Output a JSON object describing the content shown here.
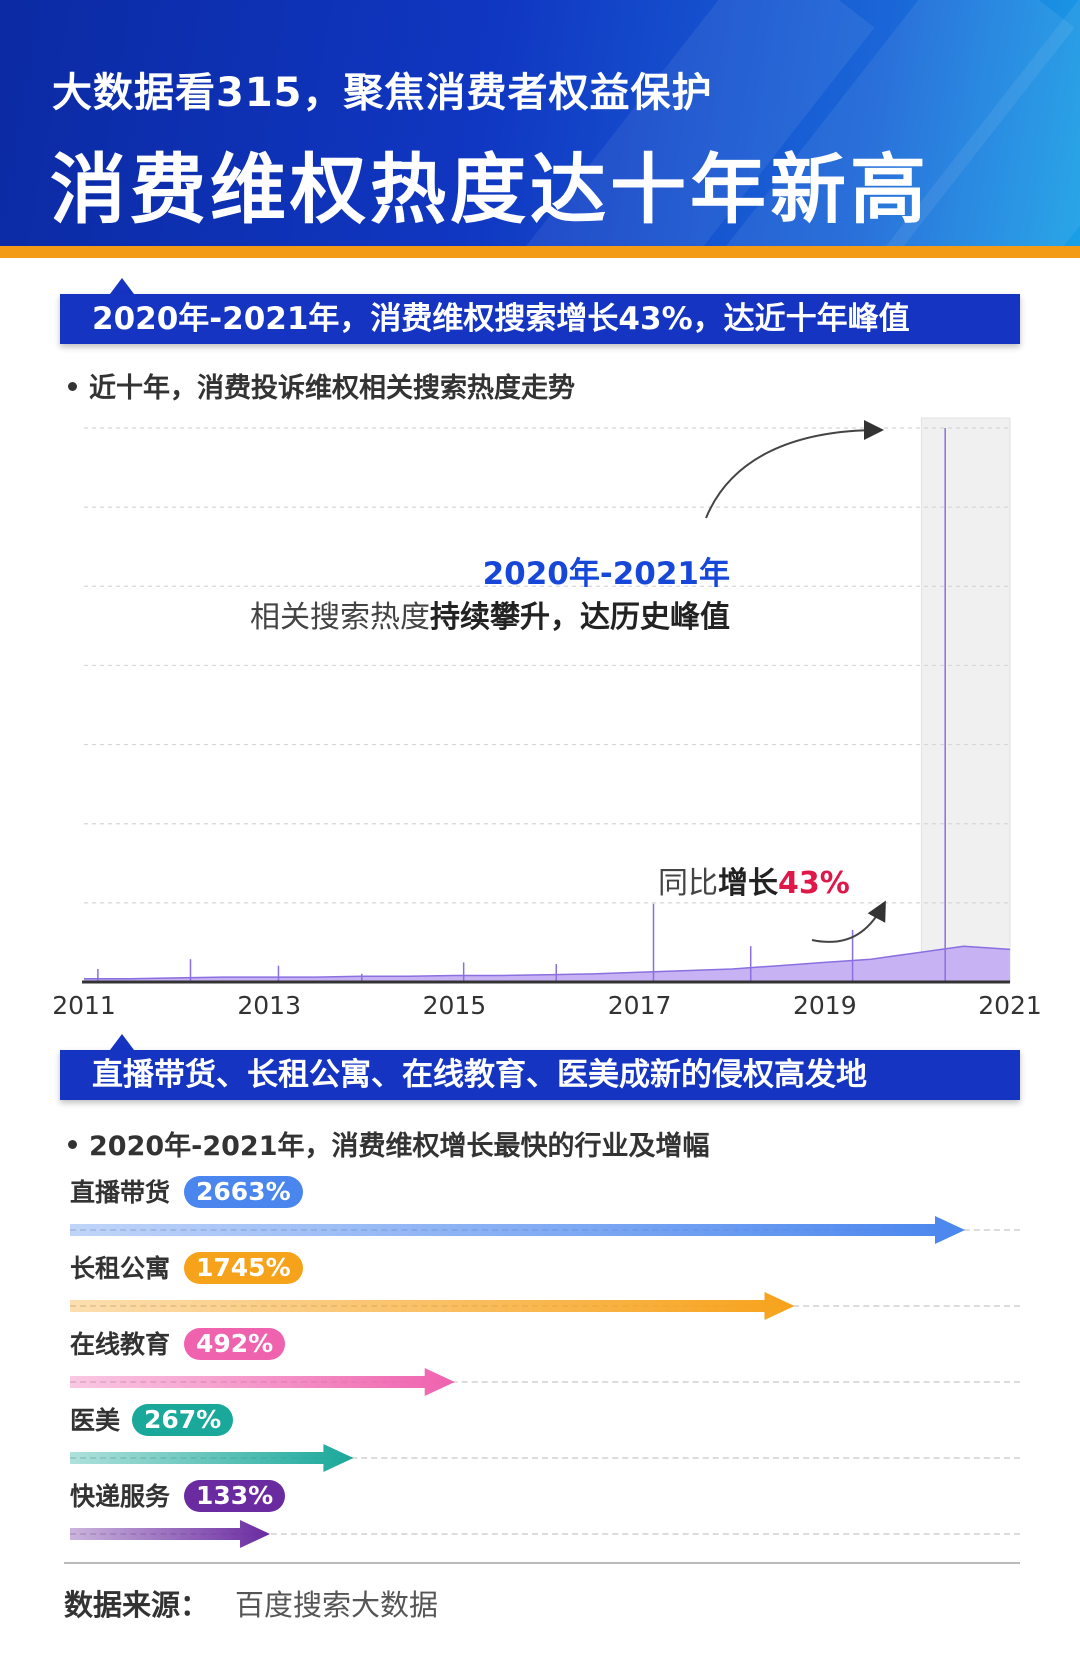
{
  "header": {
    "subtitle": "大数据看315，聚焦消费者权益保护",
    "title": "消费维权热度达十年新高"
  },
  "section1": {
    "banner": "2020年-2021年，消费维权搜索增长43%，达近十年峰值",
    "bullet": "近十年，消费投诉维权相关搜索热度走势"
  },
  "annotations": {
    "years": "2020年-2021年",
    "desc_plain": "相关搜索热度",
    "desc_bold": "持续攀升，达历史峰值",
    "yoy_prefix": "同比",
    "yoy_bold": "增长",
    "yoy_value": "43%"
  },
  "chart_data": {
    "type": "area",
    "x_tick_labels": [
      "2011",
      "2013",
      "2015",
      "2017",
      "2019",
      "2021"
    ],
    "grid": true,
    "highlight_range": [
      "2020",
      "2021"
    ],
    "colors": {
      "fill": "#c7b3f3",
      "line": "#8a6fe0",
      "highlight": "#f0f0f0"
    },
    "x": [
      2011.0,
      2011.5,
      2012.0,
      2012.5,
      2013.0,
      2013.5,
      2014.0,
      2014.5,
      2015.0,
      2015.5,
      2016.0,
      2016.5,
      2017.0,
      2017.5,
      2018.0,
      2018.5,
      2019.0,
      2019.5,
      2020.0,
      2020.5,
      2021.0
    ],
    "series": [
      {
        "values": [
          2,
          2,
          2.5,
          3,
          3,
          3,
          3.5,
          3.5,
          4,
          4,
          4.5,
          5,
          6,
          7,
          8,
          10,
          12,
          14,
          18,
          22,
          20
        ]
      }
    ],
    "spikes": [
      {
        "x": 2011.15,
        "y": 8
      },
      {
        "x": 2012.15,
        "y": 14
      },
      {
        "x": 2013.1,
        "y": 10
      },
      {
        "x": 2014.0,
        "y": 5
      },
      {
        "x": 2015.1,
        "y": 12
      },
      {
        "x": 2016.1,
        "y": 11
      },
      {
        "x": 2017.15,
        "y": 48
      },
      {
        "x": 2018.2,
        "y": 22
      },
      {
        "x": 2019.3,
        "y": 32
      },
      {
        "x": 2020.3,
        "y": 340
      }
    ],
    "ylim": [
      0,
      340
    ]
  },
  "section2": {
    "banner": "直播带货、长租公寓、在线教育、医美成新的侵权高发地",
    "bullet": "2020年-2021年，消费维权增长最快的行业及增幅"
  },
  "industries": [
    {
      "name": "直播带货",
      "growth": "2663%",
      "value": 2663,
      "color": "#4a86ee"
    },
    {
      "name": "长租公寓",
      "growth": "1745%",
      "value": 1745,
      "color": "#f7a21b"
    },
    {
      "name": "在线教育",
      "growth": "492%",
      "value": 492,
      "color": "#ef62ae"
    },
    {
      "name": "医美",
      "growth": "267%",
      "value": 267,
      "color": "#19a89a"
    },
    {
      "name": "快递服务",
      "growth": "133%",
      "value": 133,
      "color": "#6a2aa0"
    }
  ],
  "footer": {
    "label": "数据来源：",
    "source": "百度搜索大数据"
  }
}
